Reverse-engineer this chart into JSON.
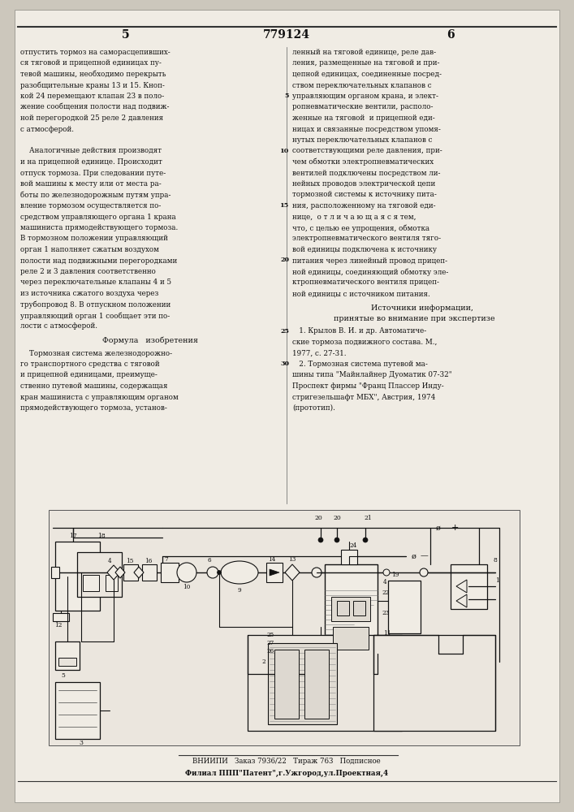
{
  "bg_color": "#e0dbd2",
  "page_bg": "#dbd6cc",
  "text_color": "#1a1a1a",
  "page_number_left": "5",
  "page_number_center": "779124",
  "page_number_right": "6",
  "left_col_lines": [
    "отпустить тормоз на саморасцепивших-",
    "ся тяговой и прицепной единицах пу-",
    "тевой машины, необходимо перекрыть",
    "разобщительные краны 13 и 15. Кноп-",
    "кой 24 перемещают клапан 23 в поло-",
    "жение сообщения полости над подвиж-",
    "ной перегородкой 25 реле 2 давления",
    "с атмосферой.",
    "",
    "    Аналогичные действия производят",
    "и на прицепной единице. Происходит",
    "отпуск тормоза. При следовании путе-",
    "вой машины к месту или от места ра-",
    "боты по железнодорожным путям упра-",
    "вление тормозом осуществляется по-",
    "средством управляющего органа 1 крана",
    "машиниста прямодействующего тормоза.",
    "В тормозном положении управляющий",
    "орган 1 наполняет сжатым воздухом",
    "полости над подвижными перегородками",
    "реле 2 и 3 давления соответственно",
    "через переключательные клапаны 4 и 5",
    "из источника сжатого воздуха через",
    "трубопровод 8. В отпускном положении",
    "управляющий орган 1 сообщает эти по-",
    "лости с атмосферой."
  ],
  "formula_title": "Формула   изобретения",
  "formula_lines": [
    "    Тормозная система железнодорожно-",
    "го транспортного средства с тяговой",
    "и прицепной единицами, преимуще-",
    "ственно путевой машины, содержащая",
    "кран машиниста с управляющим органом",
    "прямодействующего тормоза, установ-"
  ],
  "right_col_lines": [
    "ленный на тяговой единице, реле дав-",
    "ления, размещенные на тяговой и при-",
    "цепной единицах, соединенные посред-",
    "ством переключательных клапанов с",
    "управляющим органом крана, и элект-",
    "ропневматические вентили, располо-",
    "женные на тяговой  и прицепной еди-",
    "ницах и связанные посредством упомя-",
    "нутых переключательных клапанов с",
    "соответствующими реле давления, при-",
    "чем обмотки электропневматических",
    "вентилей подключены посредством ли-",
    "нейных проводов электрической цепи",
    "тормозной системы к источнику пита-",
    "ния, расположенному на тяговой еди-",
    "нице,  о т л и ч а ю щ а я с я тем,",
    "что, с целью ее упрощения, обмотка",
    "электропневматического вентиля тяго-",
    "вой единицы подключена к источнику",
    "питания через линейный провод прицеп-",
    "ной единицы, соединяющий обмотку эле-",
    "ктропневматического вентиля прицеп-",
    "ной единицы с источником питания."
  ],
  "sources_title": "Источники информации,",
  "sources_subtitle": "принятые во внимание при экспертизе",
  "sources_lines": [
    "   1. Крылов В. И. и др. Автоматиче-",
    "ские тормоза подвижного состава. М.,",
    "1977, с. 27-31.",
    "   2. Тормозная система путевой ма-",
    "шины типа \"Майнлайнер Дуоматик 07-32\"",
    "Проспект фирмы \"Франц Плассер Инду-",
    "стригезельшафт МБХ\", Австрия, 1974",
    "(прототип)."
  ],
  "bottom_line1": "ВНИИПИ   Заказ 7936/22   Тираж 763   Подписное",
  "bottom_line2": "Филиал ППП\"Патент\",г.Ужгород,ул.Проектная,4"
}
